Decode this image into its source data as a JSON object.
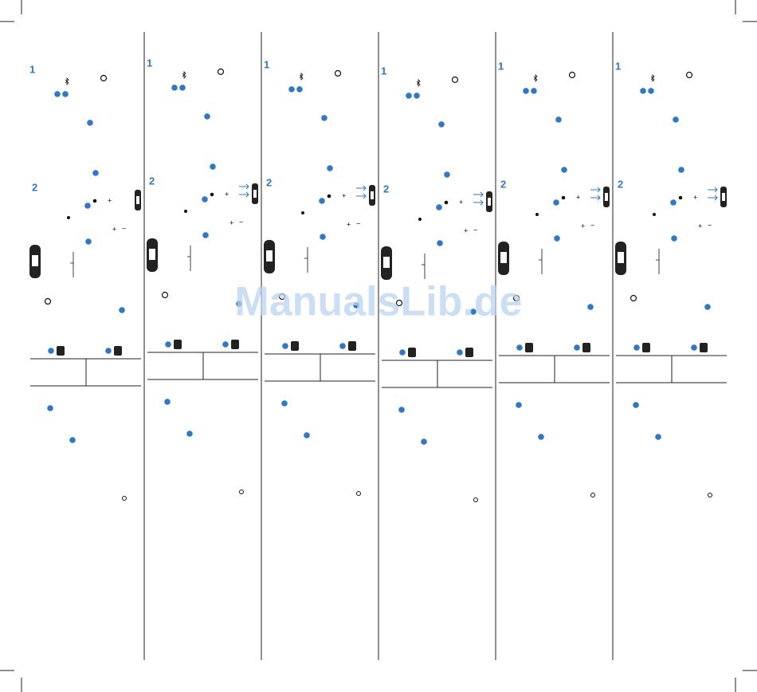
{
  "watermark": "ManualsLib.de",
  "columns": [
    {
      "step1": "1",
      "step2": "2",
      "plus_a": "+",
      "plus_b": "+",
      "minus": "−"
    },
    {
      "step1": "1",
      "step2": "2",
      "plus_a": "+",
      "plus_b": "+",
      "minus": "−"
    },
    {
      "step1": "1",
      "step2": "2",
      "plus_a": "+",
      "plus_b": "+",
      "minus": "−"
    },
    {
      "step1": "1",
      "step2": "2",
      "plus_a": "+",
      "plus_b": "+",
      "minus": "−"
    },
    {
      "step1": "1",
      "step2": "2",
      "plus_a": "+",
      "plus_b": "+",
      "minus": "−"
    },
    {
      "step1": "1",
      "step2": "2",
      "plus_a": "+",
      "plus_b": "+",
      "minus": "−"
    }
  ]
}
